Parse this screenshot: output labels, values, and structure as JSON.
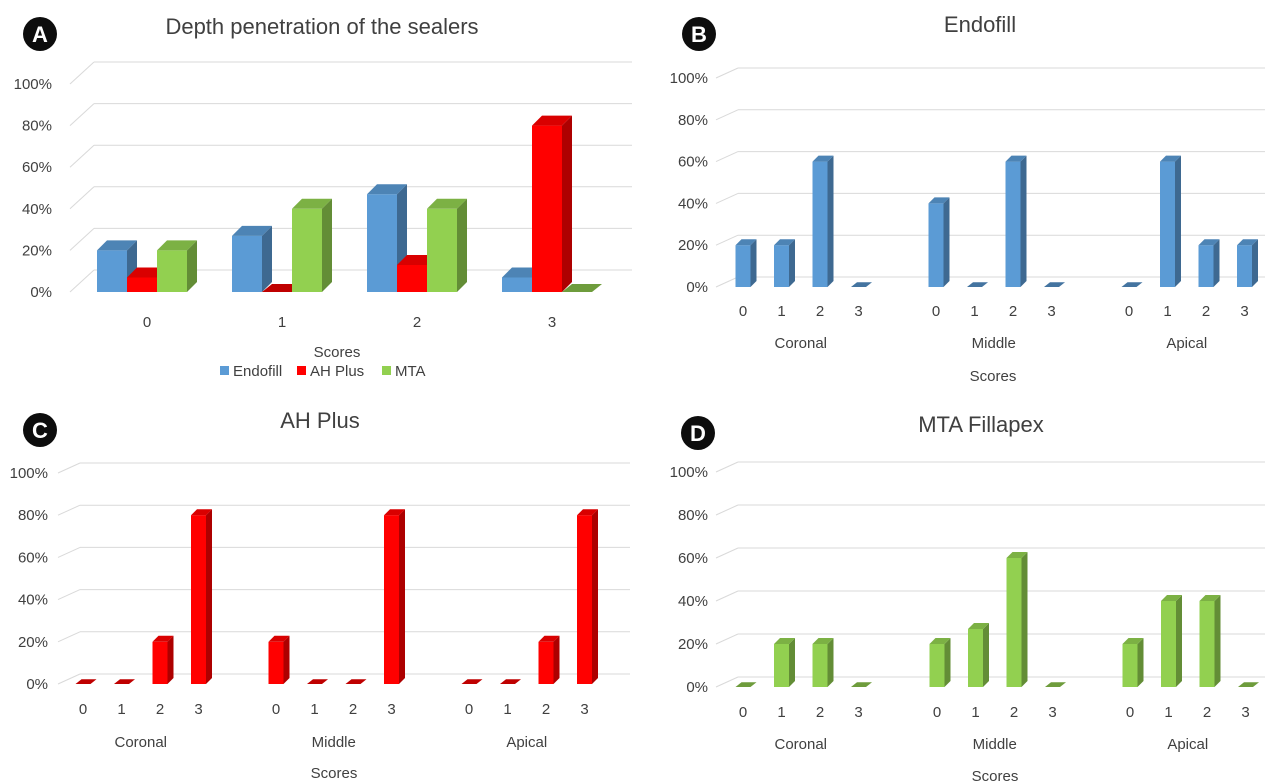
{
  "colors": {
    "endofill": "#5b9bd5",
    "ah_plus": "#ff0000",
    "mta": "#92d050",
    "grid": "#d9d9d9",
    "text": "#404040"
  },
  "chart_data": [
    {
      "panel": "A",
      "type": "bar",
      "title": "Depth penetration of the sealers",
      "xlabel": "Scores",
      "ylabel": "",
      "categories": [
        "0",
        "1",
        "2",
        "3"
      ],
      "y_ticks": [
        "0%",
        "20%",
        "40%",
        "60%",
        "80%",
        "100%"
      ],
      "ylim": [
        0,
        100
      ],
      "grid": true,
      "legend": "bottom",
      "series": [
        {
          "name": "Endofill",
          "color": "#5b9bd5",
          "values": [
            20,
            27,
            47,
            7
          ]
        },
        {
          "name": "AH Plus",
          "color": "#ff0000",
          "values": [
            7,
            0,
            13,
            80
          ]
        },
        {
          "name": "MTA",
          "color": "#92d050",
          "values": [
            20,
            40,
            40,
            0
          ]
        }
      ]
    },
    {
      "panel": "B",
      "type": "bar",
      "title": "Endofill",
      "xlabel": "Scores",
      "ylabel": "",
      "color": "#5b9bd5",
      "y_ticks": [
        "0%",
        "20%",
        "40%",
        "60%",
        "80%",
        "100%"
      ],
      "ylim": [
        0,
        100
      ],
      "grid": true,
      "groups": [
        {
          "label": "Coronal",
          "categories": [
            "0",
            "1",
            "2",
            "3"
          ],
          "values": [
            20,
            20,
            60,
            0
          ]
        },
        {
          "label": "Middle",
          "categories": [
            "0",
            "1",
            "2",
            "3"
          ],
          "values": [
            40,
            0,
            60,
            0
          ]
        },
        {
          "label": "Apical",
          "categories": [
            "0",
            "1",
            "2",
            "3"
          ],
          "values": [
            0,
            60,
            20,
            20
          ]
        }
      ]
    },
    {
      "panel": "C",
      "type": "bar",
      "title": "AH Plus",
      "xlabel": "Scores",
      "ylabel": "",
      "color": "#ff0000",
      "y_ticks": [
        "0%",
        "20%",
        "40%",
        "60%",
        "80%",
        "100%"
      ],
      "ylim": [
        0,
        100
      ],
      "grid": true,
      "groups": [
        {
          "label": "Coronal",
          "categories": [
            "0",
            "1",
            "2",
            "3"
          ],
          "values": [
            0,
            0,
            20,
            80
          ]
        },
        {
          "label": "Middle",
          "categories": [
            "0",
            "1",
            "2",
            "3"
          ],
          "values": [
            20,
            0,
            0,
            80
          ]
        },
        {
          "label": "Apical",
          "categories": [
            "0",
            "1",
            "2",
            "3"
          ],
          "values": [
            0,
            0,
            20,
            80
          ]
        }
      ]
    },
    {
      "panel": "D",
      "type": "bar",
      "title": "MTA Fillapex",
      "xlabel": "Scores",
      "ylabel": "",
      "color": "#92d050",
      "y_ticks": [
        "0%",
        "20%",
        "40%",
        "60%",
        "80%",
        "100%"
      ],
      "ylim": [
        0,
        100
      ],
      "grid": true,
      "groups": [
        {
          "label": "Coronal",
          "categories": [
            "0",
            "1",
            "2",
            "3"
          ],
          "values": [
            0,
            20,
            20,
            0
          ]
        },
        {
          "label": "Middle",
          "categories": [
            "0",
            "1",
            "2",
            "3"
          ],
          "values": [
            20,
            27,
            60,
            0
          ]
        },
        {
          "label": "Apical",
          "categories": [
            "0",
            "1",
            "2",
            "3"
          ],
          "values": [
            20,
            40,
            40,
            0
          ]
        }
      ]
    }
  ]
}
